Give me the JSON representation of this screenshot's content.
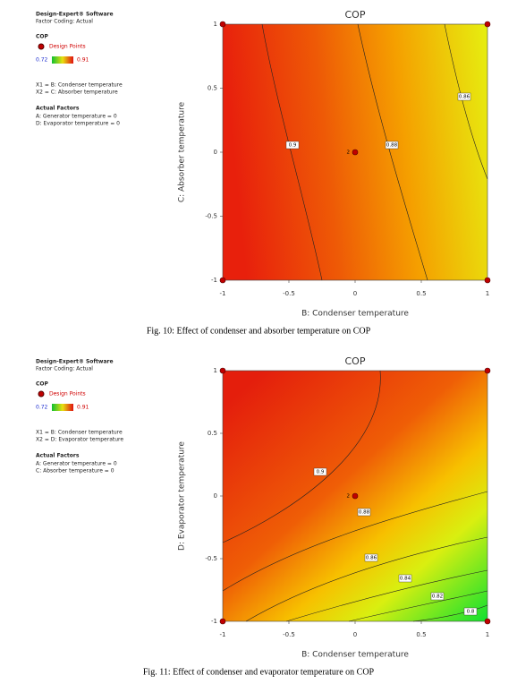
{
  "chart_data": [
    {
      "type": "contour",
      "title": "COP",
      "sidebar": {
        "software": "Design-Expert® Software",
        "coding": "Factor Coding: Actual",
        "response": "COP",
        "design_points_label": "Design Points",
        "range_low": 0.72,
        "range_high": 0.91,
        "x1": "X1 = B: Condenser temperature",
        "x2": "X2 = C: Absorber temperature",
        "actual_factors_title": "Actual Factors",
        "factors": [
          "A: Generator temperature = 0",
          "D: Evaporator temperature = 0"
        ]
      },
      "x_label": "B: Condenser temperature",
      "y_label": "C: Absorber temperature",
      "xlim": [
        -1,
        1
      ],
      "ylim": [
        -1,
        1
      ],
      "xticks": [
        -1,
        -0.5,
        0,
        0.5,
        1
      ],
      "yticks": [
        -1,
        -0.5,
        0,
        0.5,
        1
      ],
      "contour_levels": [
        0.9,
        0.88,
        0.86
      ],
      "design_points": {
        "x": [
          -1,
          1,
          -1,
          1,
          0
        ],
        "y": [
          1,
          1,
          -1,
          -1,
          0
        ]
      },
      "center_replicates": 2,
      "caption": "Fig. 10: Effect of condenser and absorber temperature on COP"
    },
    {
      "type": "contour",
      "title": "COP",
      "sidebar": {
        "software": "Design-Expert® Software",
        "coding": "Factor Coding: Actual",
        "response": "COP",
        "design_points_label": "Design Points",
        "range_low": 0.72,
        "range_high": 0.91,
        "x1": "X1 = B: Condenser temperature",
        "x2": "X2 = D: Evaporator temperature",
        "actual_factors_title": "Actual Factors",
        "factors": [
          "A: Generator temperature = 0",
          "C: Absorber temperature = 0"
        ]
      },
      "x_label": "B: Condenser temperature",
      "y_label": "D: Evaporator temperature",
      "xlim": [
        -1,
        1
      ],
      "ylim": [
        -1,
        1
      ],
      "xticks": [
        -1,
        -0.5,
        0,
        0.5,
        1
      ],
      "yticks": [
        -1,
        -0.5,
        0,
        0.5,
        1
      ],
      "contour_levels": [
        0.9,
        0.88,
        0.86,
        0.84,
        0.82,
        0.8
      ],
      "design_points": {
        "x": [
          -1,
          1,
          -1,
          1,
          0
        ],
        "y": [
          1,
          1,
          -1,
          -1,
          0
        ]
      },
      "center_replicates": 2,
      "caption": "Fig. 11: Effect of condenser and evaporator temperature on COP"
    }
  ]
}
